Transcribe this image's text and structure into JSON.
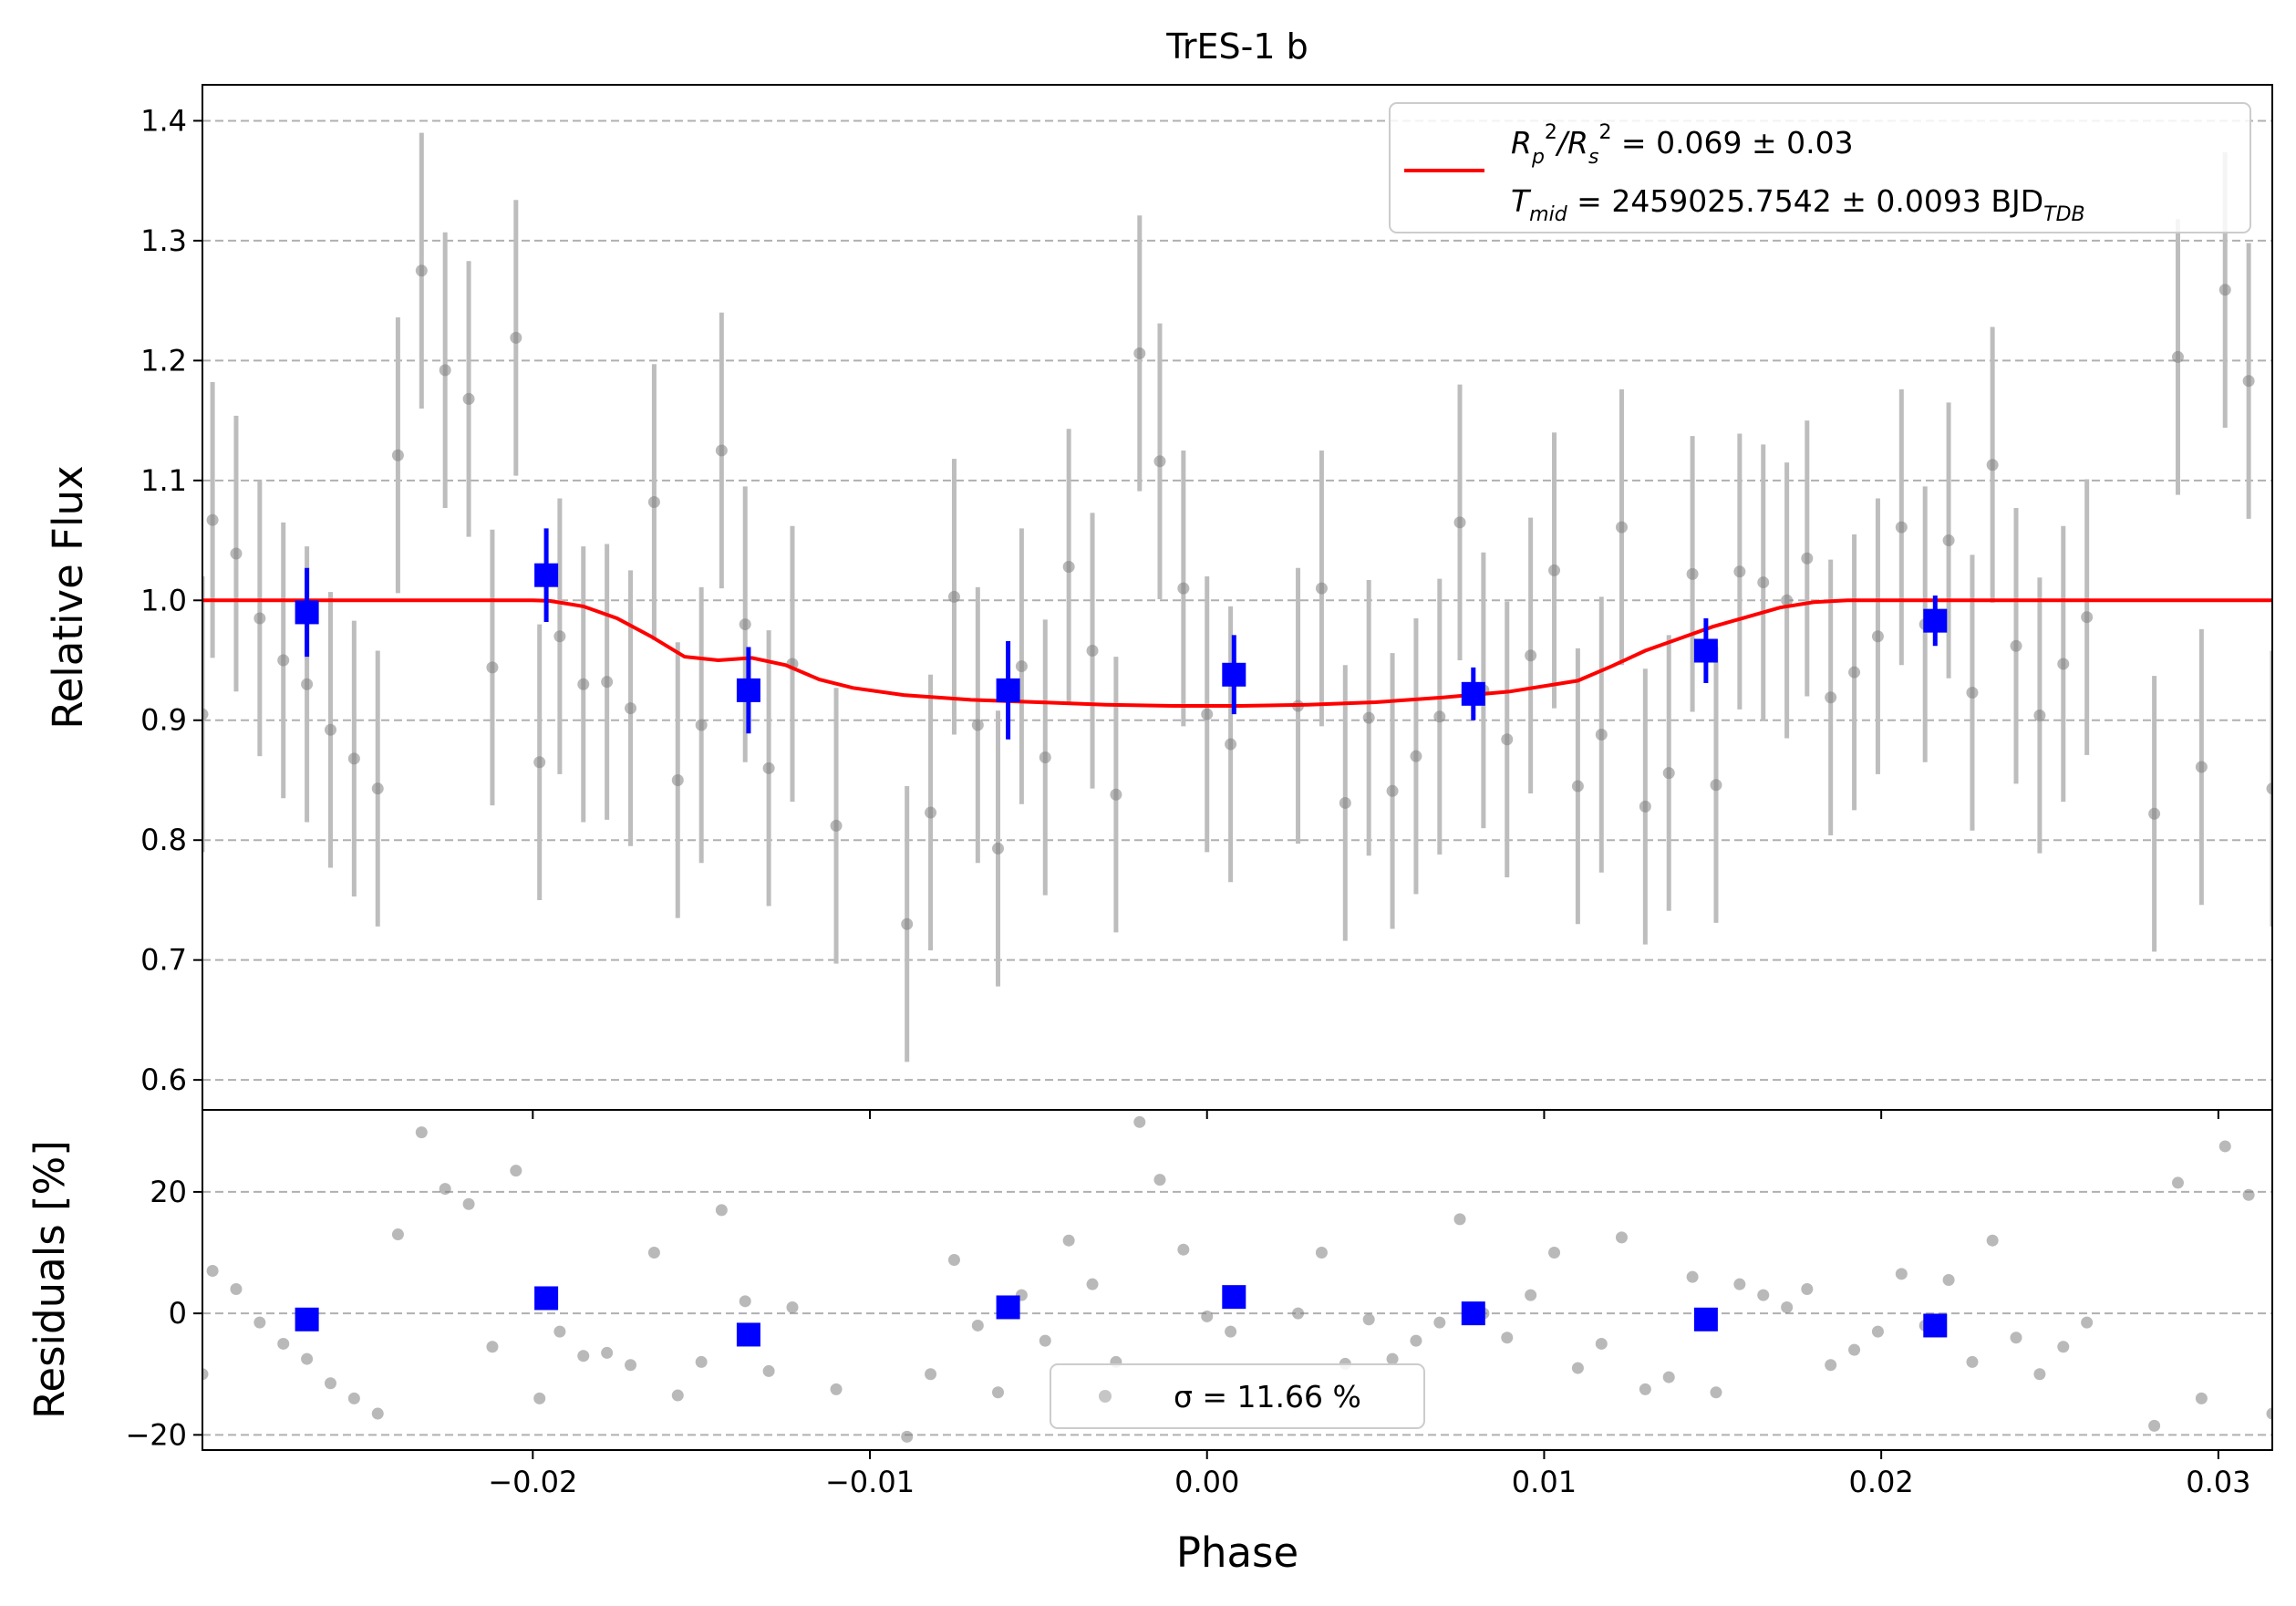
{
  "chart_data": [
    {
      "type": "scatter",
      "panel": "top",
      "title": "TrES-1 b",
      "xlabel": "",
      "ylabel": "Relative Flux",
      "xlim": [
        -0.0298,
        0.0316
      ],
      "ylim": [
        0.575,
        1.43
      ],
      "x_ticks": [
        -0.02,
        -0.01,
        0.0,
        0.01,
        0.02,
        0.03
      ],
      "y_ticks": [
        0.6,
        0.7,
        0.8,
        0.9,
        1.0,
        1.1,
        1.2,
        1.3,
        1.4
      ],
      "y_tick_labels": [
        "0.6",
        "0.7",
        "0.8",
        "0.9",
        "1.0",
        "1.1",
        "1.2",
        "1.3",
        "1.4"
      ],
      "grid": "horizontal dashed",
      "legend_position": "top-right",
      "colors": {
        "raw": "#808080",
        "binned": "#0000ff",
        "model": "#ff0000",
        "grid": "#b0b0b0"
      },
      "series": [
        {
          "kind": "raw",
          "points": [
            [
              -0.0298,
              0.905,
              0.115
            ],
            [
              -0.0295,
              1.067,
              0.115
            ],
            [
              -0.0288,
              1.039,
              0.115
            ],
            [
              -0.0281,
              0.985,
              0.115
            ],
            [
              -0.0274,
              0.95,
              0.115
            ],
            [
              -0.0267,
              0.93,
              0.115
            ],
            [
              -0.026,
              0.892,
              0.115
            ],
            [
              -0.0253,
              0.868,
              0.115
            ],
            [
              -0.0246,
              0.843,
              0.115
            ],
            [
              -0.024,
              1.121,
              0.115
            ],
            [
              -0.0233,
              1.275,
              0.115
            ],
            [
              -0.0226,
              1.192,
              0.115
            ],
            [
              -0.0219,
              1.168,
              0.115
            ],
            [
              -0.0212,
              0.944,
              0.115
            ],
            [
              -0.0205,
              1.219,
              0.115
            ],
            [
              -0.0198,
              0.865,
              0.115
            ],
            [
              -0.0192,
              0.97,
              0.115
            ],
            [
              -0.0185,
              0.93,
              0.115
            ],
            [
              -0.0178,
              0.932,
              0.115
            ],
            [
              -0.0171,
              0.91,
              0.115
            ],
            [
              -0.0164,
              1.082,
              0.115
            ],
            [
              -0.0157,
              0.85,
              0.115
            ],
            [
              -0.015,
              0.896,
              0.115
            ],
            [
              -0.0144,
              1.125,
              0.115
            ],
            [
              -0.0137,
              0.98,
              0.115
            ],
            [
              -0.013,
              0.86,
              0.115
            ],
            [
              -0.0123,
              0.947,
              0.115
            ],
            [
              -0.011,
              0.812,
              0.115
            ],
            [
              -0.0089,
              0.73,
              0.115
            ],
            [
              -0.0082,
              0.823,
              0.115
            ],
            [
              -0.0075,
              1.003,
              0.115
            ],
            [
              -0.0068,
              0.896,
              0.115
            ],
            [
              -0.0062,
              0.793,
              0.115
            ],
            [
              -0.0055,
              0.945,
              0.115
            ],
            [
              -0.0048,
              0.869,
              0.115
            ],
            [
              -0.0041,
              1.028,
              0.115
            ],
            [
              -0.0034,
              0.958,
              0.115
            ],
            [
              -0.0027,
              0.838,
              0.115
            ],
            [
              -0.002,
              1.206,
              0.115
            ],
            [
              -0.0014,
              1.116,
              0.115
            ],
            [
              -0.0007,
              1.01,
              0.115
            ],
            [
              0.0,
              0.905,
              0.115
            ],
            [
              0.0007,
              0.88,
              0.115
            ],
            [
              0.0027,
              0.912,
              0.115
            ],
            [
              0.0034,
              1.01,
              0.115
            ],
            [
              0.0041,
              0.831,
              0.115
            ],
            [
              0.0048,
              0.902,
              0.115
            ],
            [
              0.0055,
              0.841,
              0.115
            ],
            [
              0.0062,
              0.87,
              0.115
            ],
            [
              0.0069,
              0.903,
              0.115
            ],
            [
              0.0075,
              1.065,
              0.115
            ],
            [
              0.0082,
              0.925,
              0.115
            ],
            [
              0.0089,
              0.884,
              0.115
            ],
            [
              0.0096,
              0.954,
              0.115
            ],
            [
              0.0103,
              1.025,
              0.115
            ],
            [
              0.011,
              0.845,
              0.115
            ],
            [
              0.0117,
              0.888,
              0.115
            ],
            [
              0.0123,
              1.061,
              0.115
            ],
            [
              0.013,
              0.828,
              0.115
            ],
            [
              0.0137,
              0.856,
              0.115
            ],
            [
              0.0144,
              1.022,
              0.115
            ],
            [
              0.0151,
              0.846,
              0.115
            ],
            [
              0.0158,
              1.024,
              0.115
            ],
            [
              0.0165,
              1.015,
              0.115
            ],
            [
              0.0172,
              1.0,
              0.115
            ],
            [
              0.0178,
              1.035,
              0.115
            ],
            [
              0.0185,
              0.919,
              0.115
            ],
            [
              0.0192,
              0.94,
              0.115
            ],
            [
              0.0199,
              0.97,
              0.115
            ],
            [
              0.0206,
              1.061,
              0.115
            ],
            [
              0.0213,
              0.98,
              0.115
            ],
            [
              0.022,
              1.05,
              0.115
            ],
            [
              0.0227,
              0.923,
              0.115
            ],
            [
              0.0233,
              1.113,
              0.115
            ],
            [
              0.024,
              0.962,
              0.115
            ],
            [
              0.0247,
              0.904,
              0.115
            ],
            [
              0.0254,
              0.947,
              0.115
            ],
            [
              0.0261,
              0.986,
              0.115
            ],
            [
              0.0281,
              0.822,
              0.115
            ],
            [
              0.0288,
              1.203,
              0.115
            ],
            [
              0.0295,
              0.861,
              0.115
            ],
            [
              0.0302,
              1.259,
              0.115
            ],
            [
              0.0309,
              1.183,
              0.115
            ],
            [
              0.0316,
              0.843,
              0.115
            ]
          ]
        },
        {
          "kind": "binned",
          "points": [
            [
              -0.0267,
              0.99,
              0.037
            ],
            [
              -0.0196,
              1.021,
              0.039
            ],
            [
              -0.0136,
              0.925,
              0.036
            ],
            [
              -0.0059,
              0.925,
              0.041
            ],
            [
              0.0008,
              0.938,
              0.033
            ],
            [
              0.0079,
              0.922,
              0.022
            ],
            [
              0.0148,
              0.958,
              0.027
            ],
            [
              0.0216,
              0.983,
              0.021
            ]
          ]
        },
        {
          "kind": "model",
          "x": [
            -0.0298,
            -0.02,
            -0.0195,
            -0.0185,
            -0.0175,
            -0.0165,
            -0.0155,
            -0.0145,
            -0.0135,
            -0.0125,
            -0.0115,
            -0.0105,
            -0.009,
            -0.007,
            -0.005,
            -0.003,
            -0.001,
            0.001,
            0.003,
            0.005,
            0.007,
            0.009,
            0.011,
            0.012,
            0.013,
            0.014,
            0.015,
            0.016,
            0.017,
            0.018,
            0.019,
            0.02,
            0.0316
          ],
          "y": [
            1.0,
            1.0,
            0.9995,
            0.995,
            0.985,
            0.97,
            0.953,
            0.95,
            0.952,
            0.946,
            0.934,
            0.927,
            0.921,
            0.917,
            0.915,
            0.913,
            0.912,
            0.912,
            0.913,
            0.915,
            0.919,
            0.924,
            0.933,
            0.945,
            0.958,
            0.968,
            0.978,
            0.986,
            0.994,
            0.9985,
            1.0,
            1.0,
            1.0
          ]
        }
      ],
      "legend": {
        "line1": {
          "pre": "R",
          "sub1": "p",
          "sup1": "2",
          "mid": "/R",
          "sub2": "s",
          "sup2": "2",
          "post": " = 0.069 ± 0.03"
        },
        "line2": {
          "pre": "T",
          "sub1": "mid",
          "post": " = 2459025.7542 ± 0.0093 BJD",
          "sub2": "TDB"
        }
      }
    },
    {
      "type": "scatter",
      "panel": "bottom",
      "xlabel": "Phase",
      "ylabel": "Residuals [%]",
      "xlim": [
        -0.0298,
        0.0316
      ],
      "ylim": [
        -22.5,
        33.5
      ],
      "x_ticks": [
        -0.02,
        -0.01,
        0.0,
        0.01,
        0.02,
        0.03
      ],
      "x_tick_labels": [
        "−0.02",
        "−0.01",
        "0.00",
        "0.01",
        "0.02",
        "0.03"
      ],
      "y_ticks": [
        -20,
        0,
        20
      ],
      "y_tick_labels": [
        "−20",
        "0",
        "20"
      ],
      "grid": "horizontal dashed",
      "legend_position": "bottom-center",
      "legend_text": "σ = 11.66 %",
      "raw_residuals": [
        [
          -0.0298,
          -10.0
        ],
        [
          -0.0295,
          7.0
        ],
        [
          -0.0288,
          4.0
        ],
        [
          -0.0281,
          -1.5
        ],
        [
          -0.0274,
          -5.0
        ],
        [
          -0.0267,
          -7.5
        ],
        [
          -0.026,
          -11.5
        ],
        [
          -0.0253,
          -14.0
        ],
        [
          -0.0246,
          -16.5
        ],
        [
          -0.024,
          13.0
        ],
        [
          -0.0233,
          29.8
        ],
        [
          -0.0226,
          20.5
        ],
        [
          -0.0219,
          18.0
        ],
        [
          -0.0212,
          -5.5
        ],
        [
          -0.0205,
          23.5
        ],
        [
          -0.0198,
          -14.0
        ],
        [
          -0.0192,
          -3.0
        ],
        [
          -0.0185,
          -7.0
        ],
        [
          -0.0178,
          -6.5
        ],
        [
          -0.0171,
          -8.5
        ],
        [
          -0.0164,
          10.0
        ],
        [
          -0.0157,
          -13.5
        ],
        [
          -0.015,
          -8.0
        ],
        [
          -0.0144,
          17.0
        ],
        [
          -0.0137,
          2.0
        ],
        [
          -0.013,
          -9.5
        ],
        [
          -0.0123,
          1.0
        ],
        [
          -0.011,
          -12.5
        ],
        [
          -0.0089,
          -20.3
        ],
        [
          -0.0082,
          -10.0
        ],
        [
          -0.0075,
          8.8
        ],
        [
          -0.0068,
          -2.0
        ],
        [
          -0.0062,
          -13.0
        ],
        [
          -0.0055,
          3.0
        ],
        [
          -0.0048,
          -4.5
        ],
        [
          -0.0041,
          12.0
        ],
        [
          -0.0034,
          4.8
        ],
        [
          -0.0027,
          -8.0
        ],
        [
          -0.002,
          31.5
        ],
        [
          -0.0014,
          22.0
        ],
        [
          -0.0007,
          10.5
        ],
        [
          0.0,
          -0.5
        ],
        [
          0.0007,
          -3.0
        ],
        [
          0.0027,
          0.0
        ],
        [
          0.0034,
          10.0
        ],
        [
          0.0041,
          -8.3
        ],
        [
          0.0048,
          -1.0
        ],
        [
          0.0055,
          -7.5
        ],
        [
          0.0062,
          -4.5
        ],
        [
          0.0069,
          -1.5
        ],
        [
          0.0075,
          15.5
        ],
        [
          0.0082,
          0.0
        ],
        [
          0.0089,
          -4.0
        ],
        [
          0.0096,
          3.0
        ],
        [
          0.0103,
          10.0
        ],
        [
          0.011,
          -9.0
        ],
        [
          0.0117,
          -5.0
        ],
        [
          0.0123,
          12.5
        ],
        [
          0.013,
          -12.5
        ],
        [
          0.0137,
          -10.5
        ],
        [
          0.0144,
          6.0
        ],
        [
          0.0151,
          -13.0
        ],
        [
          0.0158,
          4.8
        ],
        [
          0.0165,
          3.0
        ],
        [
          0.0172,
          1.0
        ],
        [
          0.0178,
          4.0
        ],
        [
          0.0185,
          -8.5
        ],
        [
          0.0192,
          -6.0
        ],
        [
          0.0199,
          -3.0
        ],
        [
          0.0206,
          6.5
        ],
        [
          0.0213,
          -2.0
        ],
        [
          0.022,
          5.5
        ],
        [
          0.0227,
          -8.0
        ],
        [
          0.0233,
          12.0
        ],
        [
          0.024,
          -4.0
        ],
        [
          0.0247,
          -10.0
        ],
        [
          0.0254,
          -5.5
        ],
        [
          0.0261,
          -1.5
        ],
        [
          0.0281,
          -18.5
        ],
        [
          0.0288,
          21.5
        ],
        [
          0.0295,
          -14.0
        ],
        [
          0.0302,
          27.5
        ],
        [
          0.0309,
          19.5
        ],
        [
          0.0316,
          -16.5
        ]
      ],
      "binned_residuals": [
        [
          -0.0267,
          -1.0
        ],
        [
          -0.0196,
          2.5
        ],
        [
          -0.0136,
          -3.5
        ],
        [
          -0.0059,
          1.0
        ],
        [
          0.0008,
          2.7
        ],
        [
          0.0079,
          0.0
        ],
        [
          0.0148,
          -1.0
        ],
        [
          0.0216,
          -2.0
        ]
      ]
    }
  ]
}
